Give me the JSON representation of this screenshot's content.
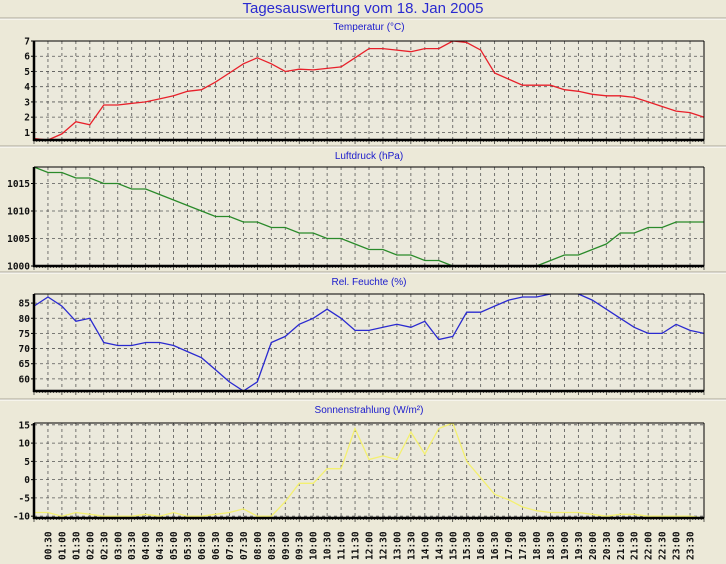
{
  "title": "Tagesauswertung vom 18. Jan 2005",
  "x_labels": [
    "00:30",
    "01:00",
    "01:30",
    "02:00",
    "02:30",
    "03:00",
    "03:30",
    "04:00",
    "04:30",
    "05:00",
    "05:30",
    "06:00",
    "06:30",
    "07:00",
    "07:30",
    "08:00",
    "08:30",
    "09:00",
    "09:30",
    "10:00",
    "10:30",
    "11:00",
    "11:30",
    "12:00",
    "12:30",
    "13:00",
    "13:30",
    "14:00",
    "14:30",
    "15:00",
    "15:30",
    "16:00",
    "16:30",
    "17:00",
    "17:30",
    "18:00",
    "18:30",
    "19:00",
    "19:30",
    "20:00",
    "20:30",
    "21:00",
    "21:30",
    "22:00",
    "22:30",
    "23:00",
    "23:30"
  ],
  "chart_data": [
    {
      "type": "line",
      "title": "Temperatur (°C)",
      "color": "#e8202a",
      "ylim": [
        0.5,
        7
      ],
      "yticks": [
        1,
        2,
        3,
        4,
        5,
        6,
        7
      ],
      "x": "half-hourly 00:00–24:00",
      "values": [
        0.6,
        0.5,
        0.9,
        1.7,
        1.5,
        2.8,
        2.8,
        2.9,
        3.0,
        3.2,
        3.4,
        3.7,
        3.8,
        4.3,
        4.9,
        5.5,
        5.9,
        5.5,
        5.0,
        5.15,
        5.1,
        5.2,
        5.3,
        5.9,
        6.5,
        6.5,
        6.4,
        6.3,
        6.5,
        6.5,
        7.0,
        6.9,
        6.4,
        4.9,
        4.5,
        4.1,
        4.1,
        4.1,
        3.8,
        3.7,
        3.5,
        3.4,
        3.4,
        3.3,
        3.0,
        2.7,
        2.4,
        2.3,
        2.0
      ]
    },
    {
      "type": "line",
      "title": "Luftdruck (hPa)",
      "color": "#2a8a2a",
      "ylim": [
        1000,
        1018
      ],
      "yticks": [
        1000,
        1005,
        1010,
        1015
      ],
      "x": "half-hourly 00:00–24:00",
      "values": [
        1018,
        1017,
        1017,
        1016,
        1016,
        1015,
        1015,
        1014,
        1014,
        1013,
        1012,
        1011,
        1010,
        1009,
        1009,
        1008,
        1008,
        1007,
        1007,
        1006,
        1006,
        1005,
        1005,
        1004,
        1003,
        1003,
        1002,
        1002,
        1001,
        1001,
        1000,
        999,
        999,
        998,
        999,
        999,
        1000,
        1001,
        1002,
        1002,
        1003,
        1004,
        1006,
        1006,
        1007,
        1007,
        1008,
        1008,
        1008
      ]
    },
    {
      "type": "line",
      "title": "Rel. Feuchte (%)",
      "color": "#2a2ad0",
      "ylim": [
        56,
        88
      ],
      "yticks": [
        60,
        65,
        70,
        75,
        80,
        85
      ],
      "x": "half-hourly 00:00–24:00",
      "values": [
        84,
        87,
        84,
        79,
        80,
        72,
        71,
        71,
        72,
        72,
        71,
        69,
        67,
        63,
        59,
        56,
        59,
        72,
        74,
        78,
        80,
        83,
        80,
        76,
        76,
        77,
        78,
        77,
        79,
        73,
        74,
        82,
        82,
        84,
        86,
        87,
        87,
        88,
        89,
        88,
        86,
        83,
        80,
        77,
        75,
        75,
        78,
        76,
        75
      ]
    },
    {
      "type": "line",
      "title": "Sonnenstrahlung (W/m²)",
      "color": "#f4f070",
      "ylim": [
        -10.5,
        15.5
      ],
      "yticks": [
        -10,
        -5,
        0,
        5,
        10,
        15
      ],
      "x": "half-hourly 00:00–24:00",
      "values": [
        -9,
        -9,
        -10,
        -9,
        -9.5,
        -10,
        -10,
        -10,
        -9.5,
        -10,
        -9,
        -10,
        -10,
        -9.5,
        -9,
        -8,
        -10,
        -10,
        -6,
        -1,
        -1,
        3,
        3,
        14,
        5.5,
        6.5,
        5.5,
        13,
        7,
        14,
        15.5,
        5,
        0.5,
        -4,
        -5.5,
        -7.5,
        -8.5,
        -9,
        -9,
        -9,
        -9.5,
        -10,
        -9.5,
        -9.5,
        -10,
        -10,
        -10,
        -10,
        -10.5
      ]
    }
  ]
}
